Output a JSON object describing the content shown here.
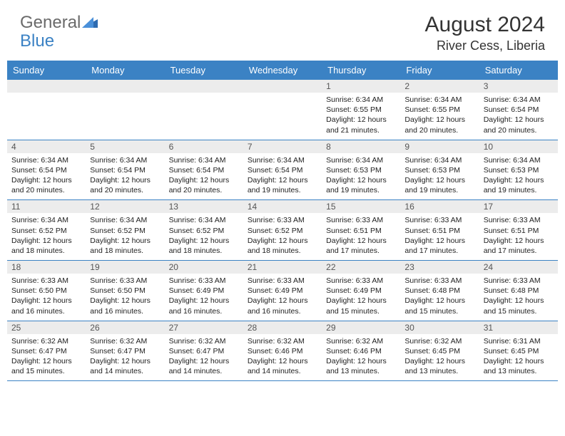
{
  "logo": {
    "general": "General",
    "blue": "Blue"
  },
  "title": "August 2024",
  "location": "River Cess, Liberia",
  "colors": {
    "header_bg": "#3b82c4",
    "header_text": "#ffffff",
    "daynum_bg": "#ececec",
    "border": "#3b82c4",
    "text": "#222222",
    "title_color": "#333333"
  },
  "dayHeaders": [
    "Sunday",
    "Monday",
    "Tuesday",
    "Wednesday",
    "Thursday",
    "Friday",
    "Saturday"
  ],
  "weeks": [
    [
      null,
      null,
      null,
      null,
      {
        "d": "1",
        "sr": "6:34 AM",
        "ss": "6:55 PM",
        "dh": "12",
        "dm": "21"
      },
      {
        "d": "2",
        "sr": "6:34 AM",
        "ss": "6:55 PM",
        "dh": "12",
        "dm": "20"
      },
      {
        "d": "3",
        "sr": "6:34 AM",
        "ss": "6:54 PM",
        "dh": "12",
        "dm": "20"
      }
    ],
    [
      {
        "d": "4",
        "sr": "6:34 AM",
        "ss": "6:54 PM",
        "dh": "12",
        "dm": "20"
      },
      {
        "d": "5",
        "sr": "6:34 AM",
        "ss": "6:54 PM",
        "dh": "12",
        "dm": "20"
      },
      {
        "d": "6",
        "sr": "6:34 AM",
        "ss": "6:54 PM",
        "dh": "12",
        "dm": "20"
      },
      {
        "d": "7",
        "sr": "6:34 AM",
        "ss": "6:54 PM",
        "dh": "12",
        "dm": "19"
      },
      {
        "d": "8",
        "sr": "6:34 AM",
        "ss": "6:53 PM",
        "dh": "12",
        "dm": "19"
      },
      {
        "d": "9",
        "sr": "6:34 AM",
        "ss": "6:53 PM",
        "dh": "12",
        "dm": "19"
      },
      {
        "d": "10",
        "sr": "6:34 AM",
        "ss": "6:53 PM",
        "dh": "12",
        "dm": "19"
      }
    ],
    [
      {
        "d": "11",
        "sr": "6:34 AM",
        "ss": "6:52 PM",
        "dh": "12",
        "dm": "18"
      },
      {
        "d": "12",
        "sr": "6:34 AM",
        "ss": "6:52 PM",
        "dh": "12",
        "dm": "18"
      },
      {
        "d": "13",
        "sr": "6:34 AM",
        "ss": "6:52 PM",
        "dh": "12",
        "dm": "18"
      },
      {
        "d": "14",
        "sr": "6:33 AM",
        "ss": "6:52 PM",
        "dh": "12",
        "dm": "18"
      },
      {
        "d": "15",
        "sr": "6:33 AM",
        "ss": "6:51 PM",
        "dh": "12",
        "dm": "17"
      },
      {
        "d": "16",
        "sr": "6:33 AM",
        "ss": "6:51 PM",
        "dh": "12",
        "dm": "17"
      },
      {
        "d": "17",
        "sr": "6:33 AM",
        "ss": "6:51 PM",
        "dh": "12",
        "dm": "17"
      }
    ],
    [
      {
        "d": "18",
        "sr": "6:33 AM",
        "ss": "6:50 PM",
        "dh": "12",
        "dm": "16"
      },
      {
        "d": "19",
        "sr": "6:33 AM",
        "ss": "6:50 PM",
        "dh": "12",
        "dm": "16"
      },
      {
        "d": "20",
        "sr": "6:33 AM",
        "ss": "6:49 PM",
        "dh": "12",
        "dm": "16"
      },
      {
        "d": "21",
        "sr": "6:33 AM",
        "ss": "6:49 PM",
        "dh": "12",
        "dm": "16"
      },
      {
        "d": "22",
        "sr": "6:33 AM",
        "ss": "6:49 PM",
        "dh": "12",
        "dm": "15"
      },
      {
        "d": "23",
        "sr": "6:33 AM",
        "ss": "6:48 PM",
        "dh": "12",
        "dm": "15"
      },
      {
        "d": "24",
        "sr": "6:33 AM",
        "ss": "6:48 PM",
        "dh": "12",
        "dm": "15"
      }
    ],
    [
      {
        "d": "25",
        "sr": "6:32 AM",
        "ss": "6:47 PM",
        "dh": "12",
        "dm": "15"
      },
      {
        "d": "26",
        "sr": "6:32 AM",
        "ss": "6:47 PM",
        "dh": "12",
        "dm": "14"
      },
      {
        "d": "27",
        "sr": "6:32 AM",
        "ss": "6:47 PM",
        "dh": "12",
        "dm": "14"
      },
      {
        "d": "28",
        "sr": "6:32 AM",
        "ss": "6:46 PM",
        "dh": "12",
        "dm": "14"
      },
      {
        "d": "29",
        "sr": "6:32 AM",
        "ss": "6:46 PM",
        "dh": "12",
        "dm": "13"
      },
      {
        "d": "30",
        "sr": "6:32 AM",
        "ss": "6:45 PM",
        "dh": "12",
        "dm": "13"
      },
      {
        "d": "31",
        "sr": "6:31 AM",
        "ss": "6:45 PM",
        "dh": "12",
        "dm": "13"
      }
    ]
  ]
}
